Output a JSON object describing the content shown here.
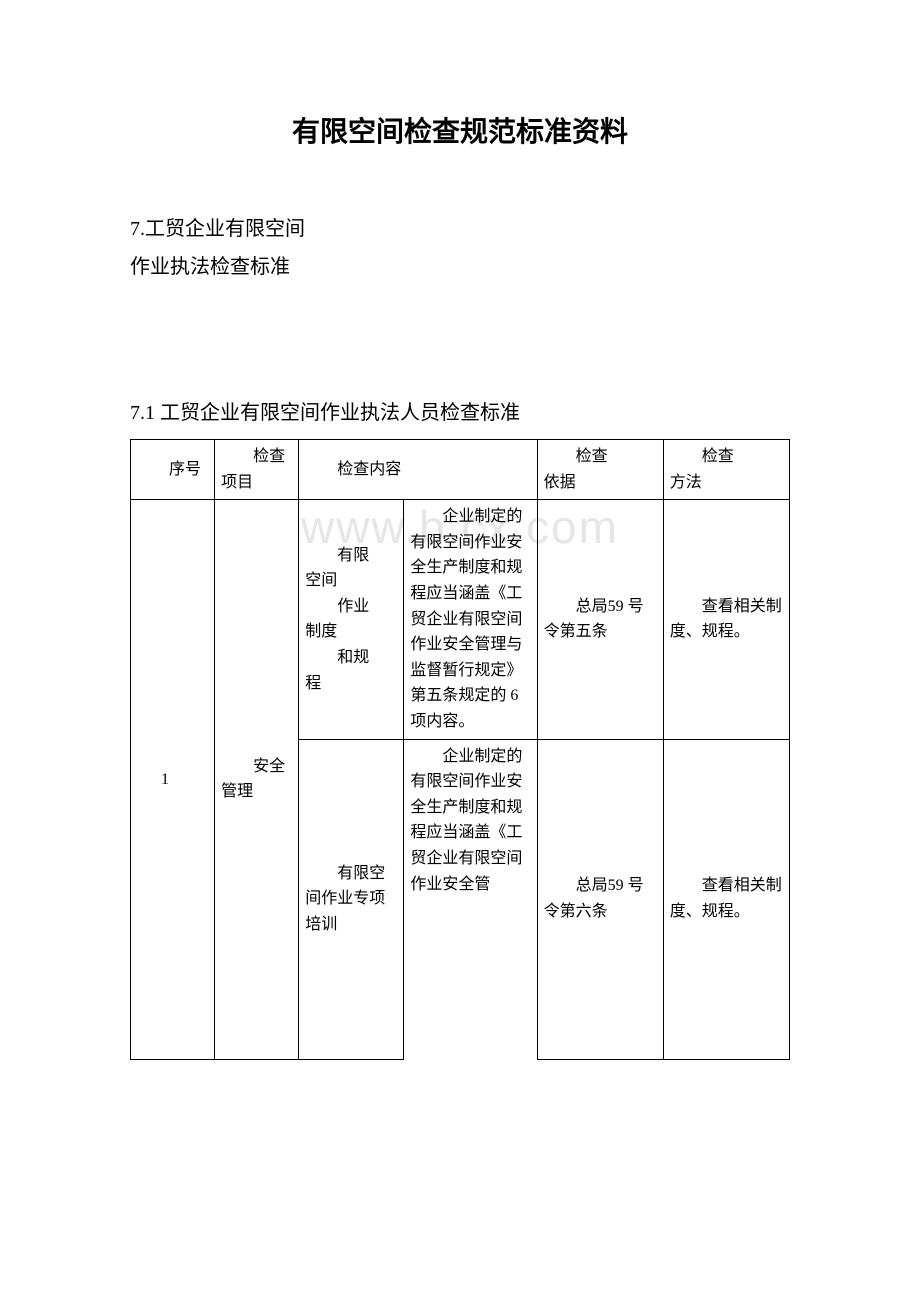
{
  "colors": {
    "text": "#000000",
    "background": "#ffffff",
    "border": "#000000",
    "watermark": "#e6e6e6"
  },
  "typography": {
    "title_fontsize": 28,
    "body_fontsize": 20,
    "table_fontsize": 16,
    "title_font": "SimHei",
    "body_font": "SimSun"
  },
  "watermark": "www.b    cx.com",
  "title": "有限空间检查规范标准资料",
  "intro": {
    "line1": "7.工贸企业有限空间",
    "line2": "作业执法检查标准"
  },
  "section_heading": "7.1 工贸企业有限空间作业执法人员检查标准",
  "table": {
    "columns": [
      {
        "key": "seq",
        "label_line1": "序号",
        "width_pct": 12
      },
      {
        "key": "item",
        "label_line1": "检查",
        "label_line2": "项目",
        "width_pct": 12
      },
      {
        "key": "content",
        "label_line1": "检查内容",
        "colspan": 2,
        "width_pct": 34
      },
      {
        "key": "basis",
        "label_line1": "检查",
        "label_line2": "依据",
        "width_pct": 18
      },
      {
        "key": "method",
        "label_line1": "检查",
        "label_line2": "方法",
        "width_pct": 18
      }
    ],
    "rows": [
      {
        "seq": "1",
        "item_line1": "安全",
        "item_line2": "管理",
        "sub": [
          {
            "content_a_lines": [
              "有限",
              "空间",
              "作业",
              "制度",
              "和规",
              "程"
            ],
            "content_a_indents": [
              "indent",
              "",
              "indent",
              "",
              "indent",
              ""
            ],
            "content_b": "　　企业制定的有限空间作业安全生产制度和规程应当涵盖《工贸企业有限空间作业安全管理与监督暂行规定》第五条规定的 6项内容。",
            "basis": "　　总局59 号令第五条",
            "method": "　　查看相关制度、规程。"
          },
          {
            "content_a": "　　有限空间作业专项培训",
            "content_b": "　　企业制定的有限空间作业安全生产制度和规程应当涵盖《工贸企业有限空间作业安全管",
            "basis": "　　总局59 号令第六条",
            "method": "　　查看相关制度、规程。"
          }
        ]
      }
    ]
  }
}
